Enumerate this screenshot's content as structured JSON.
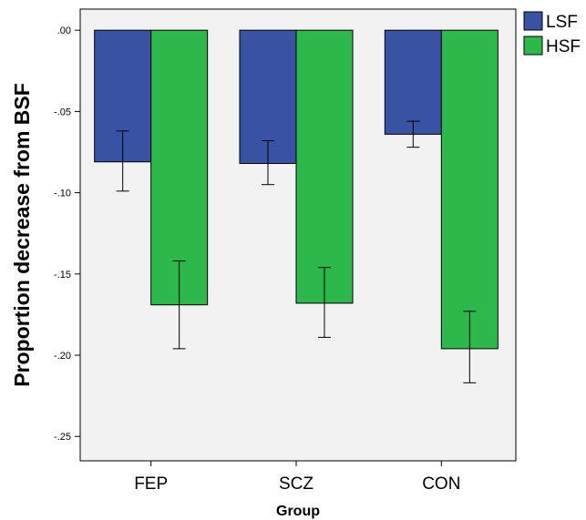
{
  "chart_data": {
    "type": "bar",
    "categories": [
      "FEP",
      "SCZ",
      "CON"
    ],
    "series": [
      {
        "name": "LSF",
        "values": [
          -0.081,
          -0.082,
          -0.064
        ],
        "error_low": [
          -0.099,
          -0.095,
          -0.072
        ],
        "error_high": [
          -0.062,
          -0.068,
          -0.056
        ],
        "color": "#3953A4"
      },
      {
        "name": "HSF",
        "values": [
          -0.169,
          -0.168,
          -0.196
        ],
        "error_low": [
          -0.196,
          -0.189,
          -0.217
        ],
        "error_high": [
          -0.142,
          -0.146,
          -0.173
        ],
        "color": "#2DB84B"
      }
    ],
    "xlabel": "Group",
    "ylabel": "Proportion decrease from BSF",
    "ylim": [
      -0.265,
      0.013
    ],
    "yticks": [
      0.0,
      -0.05,
      -0.1,
      -0.15,
      -0.2,
      -0.25
    ],
    "ytick_labels": [
      ".00",
      "-.05",
      "-.10",
      "-.15",
      "-.20",
      "-.25"
    ],
    "grid": false,
    "legend_position": "top-right",
    "plot_background": "#F2F2F2"
  }
}
